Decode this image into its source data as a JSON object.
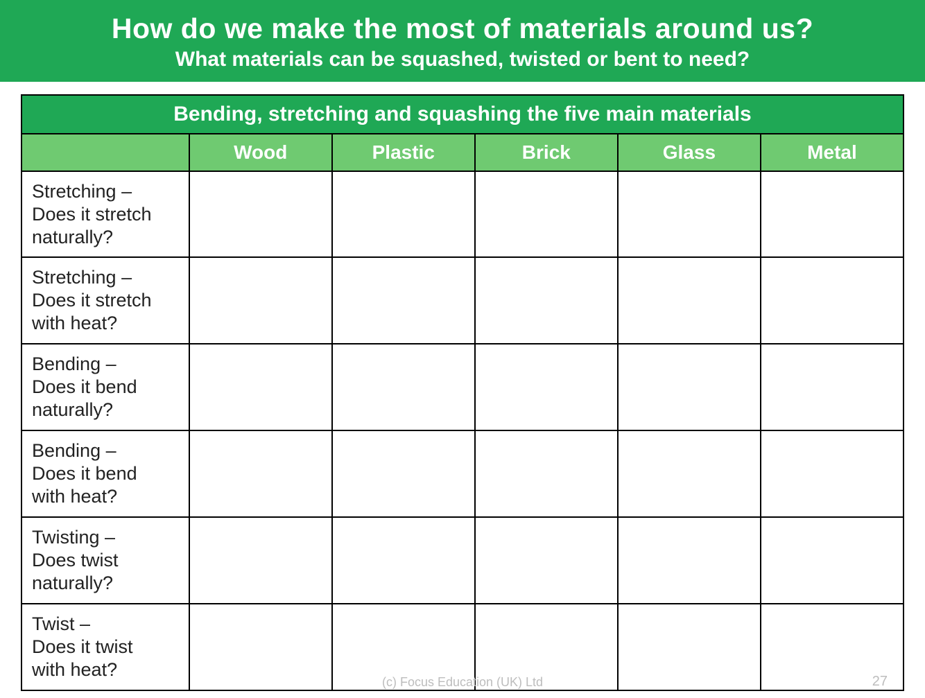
{
  "header": {
    "title": "How do we make the most of materials around us?",
    "subtitle": "What materials can be squashed, twisted or bent to need?"
  },
  "table": {
    "title": "Bending, stretching and squashing the five main materials",
    "title_bg": "#1fa855",
    "title_color": "#ffffff",
    "title_fontsize": 30,
    "header_bg": "#6fca71",
    "header_color": "#ffffff",
    "header_fontsize": 28,
    "border_color": "#000000",
    "cell_bg": "#ffffff",
    "rowlabel_color": "#222222",
    "rowlabel_fontsize": 27,
    "columns": [
      "Wood",
      "Plastic",
      "Brick",
      "Glass",
      "Metal"
    ],
    "rows": [
      {
        "l1": "Stretching –",
        "l2": "Does it stretch",
        "l3": "naturally?"
      },
      {
        "l1": "Stretching –",
        "l2": "Does it stretch",
        "l3": "with heat?"
      },
      {
        "l1": "Bending –",
        "l2": "Does it bend",
        "l3": "naturally?"
      },
      {
        "l1": "Bending –",
        "l2": "Does it bend",
        "l3": "with heat?"
      },
      {
        "l1": "Twisting –",
        "l2": "Does twist",
        "l3": "naturally?"
      },
      {
        "l1": "Twist –",
        "l2": "Does it twist",
        "l3": "with heat?"
      }
    ]
  },
  "footer": {
    "copyright": "(c) Focus Education (UK) Ltd",
    "page": "27"
  },
  "page": {
    "bg": "#1fa855",
    "content_bg": "#ffffff",
    "title_color": "#ffffff",
    "title_fontsize": 41,
    "subtitle_fontsize": 30,
    "footer_color": "#bdbdbd"
  }
}
